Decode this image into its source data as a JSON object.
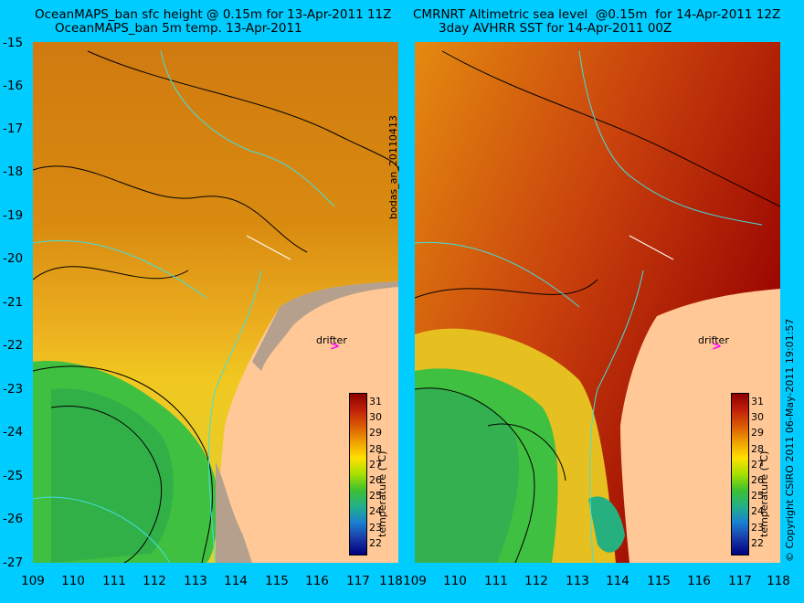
{
  "titles": {
    "left_line1": "OceanMAPS_ban sfc height @ 0.15m for 13-Apr-2011 11Z",
    "left_line2": "OceanMAPS_ban 5m temp. 13-Apr-2011",
    "right_line1": "CMRNRT Altimetric sea level  @0.15m  for 14-Apr-2011 12Z",
    "right_line2": "3day AVHRR SST for 14-Apr-2011 00Z"
  },
  "y_ticks": [
    "-15",
    "-16",
    "-17",
    "-18",
    "-19",
    "-20",
    "-21",
    "-22",
    "-23",
    "-24",
    "-25",
    "-26",
    "-27"
  ],
  "x_ticks": [
    "109",
    "110",
    "111",
    "112",
    "113",
    "114",
    "115",
    "116",
    "117",
    "118"
  ],
  "run_id": "bodas_an_20110413",
  "copyright": "© Copyright CSIRO 2011   06-May-2011 19:01:57",
  "drifter_label": "drifter",
  "drifter_symbol": ">",
  "colorbar": {
    "ticks": [
      "31",
      "30",
      "29",
      "28",
      "27",
      "26",
      "25",
      "24",
      "23",
      "22"
    ],
    "title": "temperature (°C)",
    "colors": [
      "#8b0000",
      "#c0200a",
      "#d95a05",
      "#f0a000",
      "#ffe000",
      "#a8e000",
      "#3ec030",
      "#22b088",
      "#1a80d0",
      "#1a3aa8",
      "#000080"
    ]
  },
  "map_colors": {
    "land": "#ffc896",
    "masked": "#b4a08c",
    "contour_coast": "#40e0e0",
    "ssh_contour": "#000000"
  }
}
